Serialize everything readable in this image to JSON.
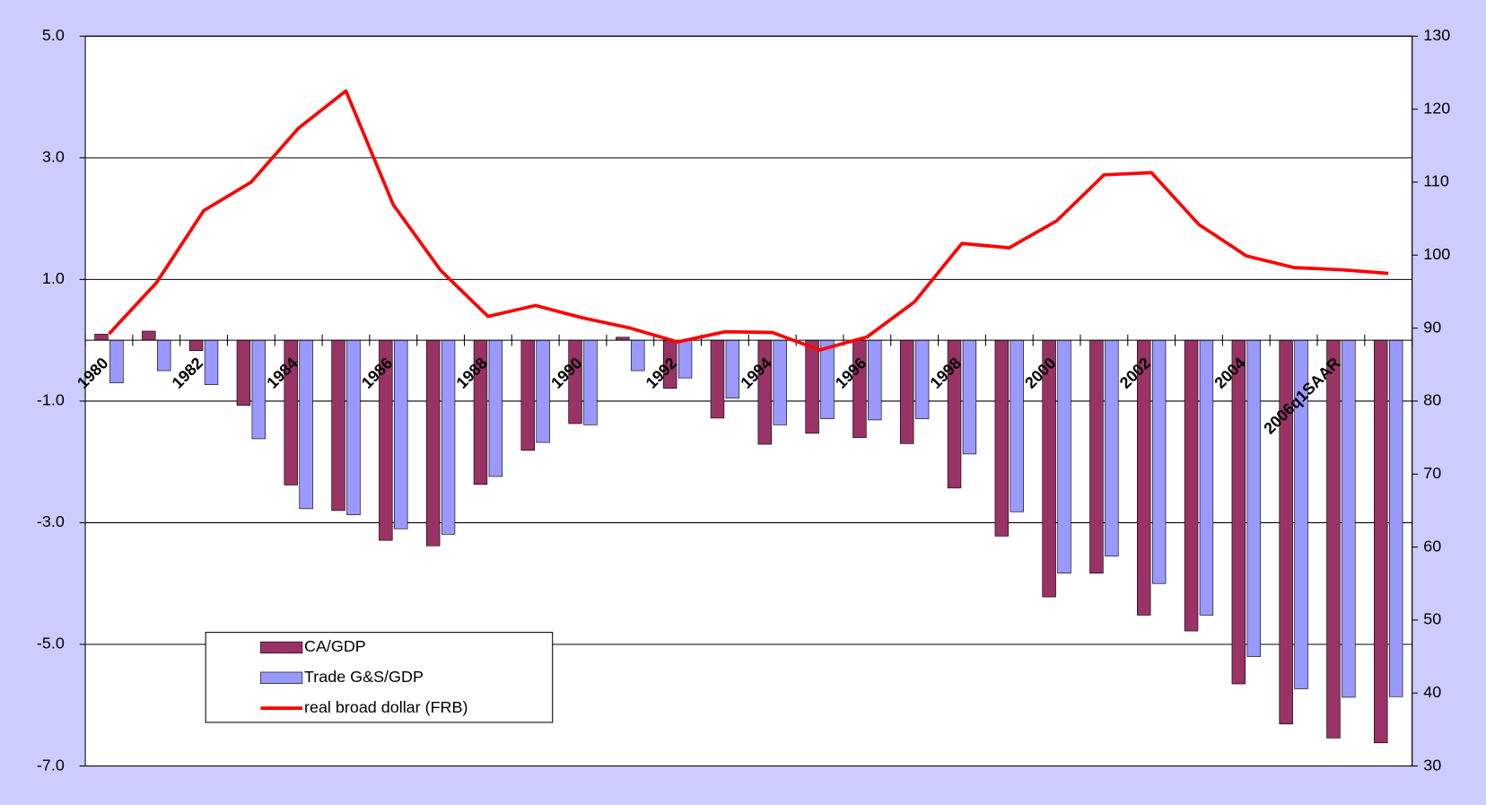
{
  "chart_data": {
    "type": "bar",
    "categories": [
      "1980",
      null,
      "1982",
      null,
      "1984",
      null,
      "1986",
      null,
      "1988",
      null,
      "1990",
      null,
      "1992",
      null,
      "1994",
      null,
      "1996",
      null,
      "1998",
      null,
      "2000",
      null,
      "2002",
      null,
      "2004",
      null,
      "2006q1SAAR",
      null
    ],
    "series": [
      {
        "name": "CA/GDP",
        "type": "bar",
        "color": "#993366",
        "values": [
          0.1,
          0.15,
          -0.17,
          -1.07,
          -2.38,
          -2.8,
          -3.29,
          -3.38,
          -2.37,
          -1.81,
          -1.37,
          0.05,
          -0.79,
          -1.28,
          -1.71,
          -1.53,
          -1.6,
          -1.7,
          -2.43,
          -3.22,
          -4.22,
          -3.83,
          -4.52,
          -4.78,
          -5.65,
          -6.31,
          -6.54,
          -6.62
        ]
      },
      {
        "name": "Trade G&S/GDP",
        "type": "bar",
        "color": "#9999ff",
        "values": [
          -0.7,
          -0.5,
          -0.73,
          -1.62,
          -2.77,
          -2.87,
          -3.1,
          -3.19,
          -2.24,
          -1.68,
          -1.39,
          -0.5,
          -0.62,
          -0.95,
          -1.39,
          -1.29,
          -1.31,
          -1.29,
          -1.87,
          -2.82,
          -3.83,
          -3.55,
          -4.0,
          -4.52,
          -5.2,
          -5.73,
          -5.87,
          -5.86
        ]
      },
      {
        "name": "real broad dollar (FRB)",
        "type": "line",
        "color": "#ff0000",
        "axis": "y2",
        "values": [
          89.2,
          96.2,
          106.1,
          110,
          117.4,
          122.5,
          106.9,
          97.9,
          91.6,
          93.1,
          91.4,
          90,
          88.1,
          89.5,
          89.4,
          87,
          88.8,
          93.6,
          101.6,
          101,
          104.7,
          111,
          111.3,
          104.2,
          99.9,
          98.3,
          98,
          97.5
        ]
      }
    ],
    "ylim": [
      -7,
      5
    ],
    "yticks": [
      {
        "value": -7,
        "label": "-7.0"
      },
      {
        "value": -5,
        "label": "-5.0"
      },
      {
        "value": -3,
        "label": "-3.0"
      },
      {
        "value": -1,
        "label": "-1.0"
      },
      {
        "value": 1,
        "label": "1.0"
      },
      {
        "value": 3,
        "label": "3.0"
      },
      {
        "value": 5,
        "label": "5.0"
      }
    ],
    "y2lim": [
      30,
      130
    ],
    "y2ticks": [
      30,
      40,
      50,
      60,
      70,
      80,
      90,
      100,
      110,
      120,
      130
    ],
    "grid": true,
    "legend": "lower left"
  }
}
